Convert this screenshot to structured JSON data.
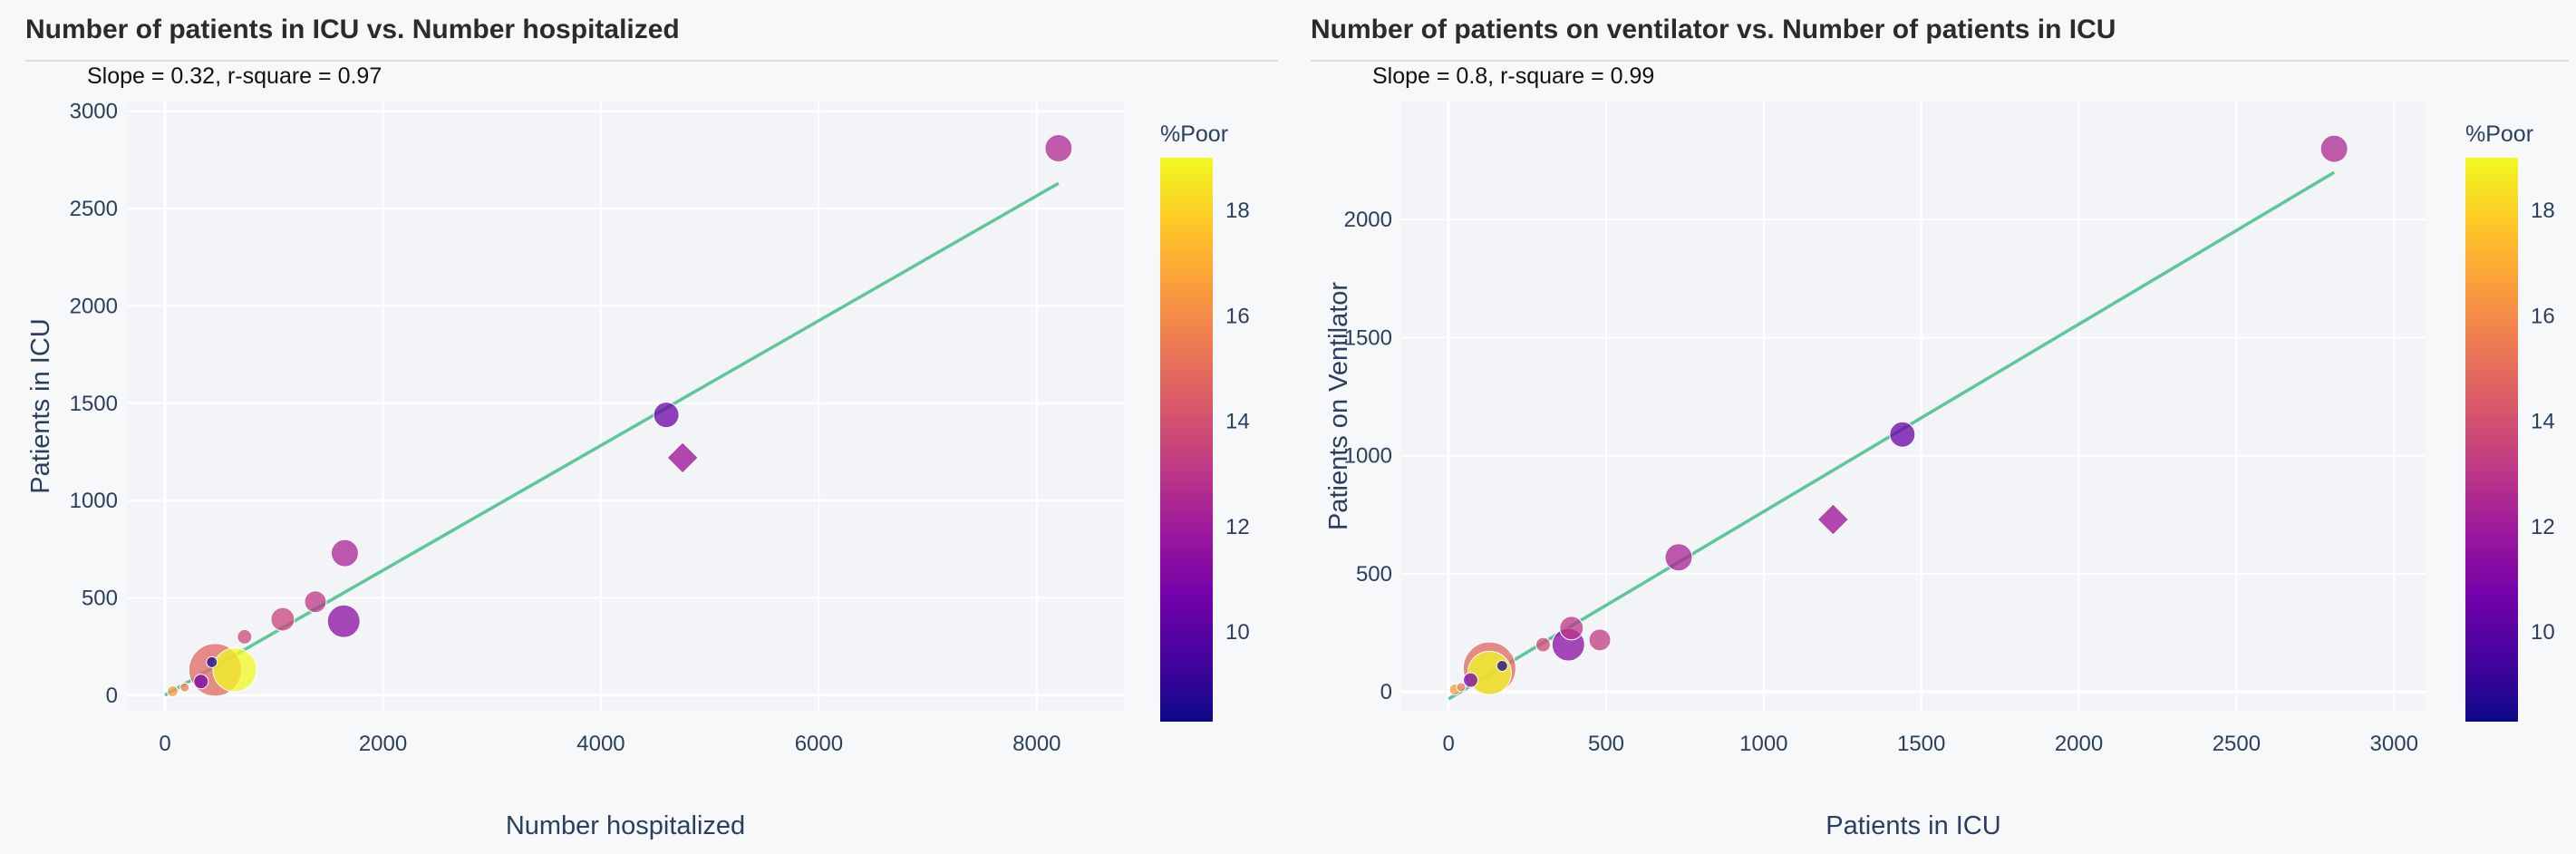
{
  "colors": {
    "background": "#f7f8fa",
    "plot_bg": "#f3f4f7",
    "grid": "#ffffff",
    "fit_line": "#5ec79a",
    "text": "#2a3f5f",
    "colorscale": [
      "#0d0887",
      "#46039f",
      "#7201a8",
      "#9c179e",
      "#bd3786",
      "#d8576b",
      "#ed7953",
      "#fb9f3a",
      "#fdca26",
      "#f0f921"
    ]
  },
  "panels": [
    {
      "title": "Number of patients in ICU vs. Number hospitalized",
      "annotation": "Slope = 0.32, r-square = 0.97",
      "colorbar": {
        "title": "%Poor",
        "range": [
          8.3,
          19
        ],
        "ticks": [
          "10",
          "12",
          "14",
          "16",
          "18"
        ]
      }
    },
    {
      "title": "Number of patients on ventilator vs. Number of patients in ICU",
      "annotation": "Slope = 0.8, r-square = 0.99",
      "colorbar": {
        "title": "%Poor",
        "range": [
          8.3,
          19
        ],
        "ticks": [
          "10",
          "12",
          "14",
          "16",
          "18"
        ]
      }
    }
  ],
  "chart_data": [
    {
      "type": "scatter",
      "title": "Number of patients in ICU vs. Number hospitalized",
      "xlabel": "Number hospitalized",
      "ylabel": "Patients in ICU",
      "xlim": [
        -350,
        8800
      ],
      "ylim": [
        -80,
        3050
      ],
      "xticks": [
        0,
        2000,
        4000,
        6000,
        8000
      ],
      "xtick_labels": [
        "0",
        "2000",
        "4000",
        "6000",
        "8000"
      ],
      "yticks": [
        0,
        500,
        1000,
        1500,
        2000,
        2500,
        3000
      ],
      "ytick_labels": [
        "0",
        "500",
        "1000",
        "1500",
        "2000",
        "2500",
        "3000"
      ],
      "grid": true,
      "color_variable": "%Poor",
      "fit_line": {
        "x": [
          0,
          8200
        ],
        "y": [
          0,
          2630
        ]
      },
      "points": [
        {
          "x": 8200,
          "y": 2810,
          "poor": 12.5,
          "size": 15,
          "symbol": "circle"
        },
        {
          "x": 4600,
          "y": 1440,
          "poor": 10.5,
          "size": 14,
          "symbol": "circle"
        },
        {
          "x": 4750,
          "y": 1220,
          "poor": 12.0,
          "size": 17,
          "symbol": "diamond"
        },
        {
          "x": 1650,
          "y": 730,
          "poor": 12.3,
          "size": 15,
          "symbol": "circle"
        },
        {
          "x": 1640,
          "y": 380,
          "poor": 11.3,
          "size": 18,
          "symbol": "circle"
        },
        {
          "x": 1380,
          "y": 480,
          "poor": 13.0,
          "size": 12,
          "symbol": "circle"
        },
        {
          "x": 1080,
          "y": 390,
          "poor": 13.5,
          "size": 13,
          "symbol": "circle"
        },
        {
          "x": 730,
          "y": 300,
          "poor": 13.8,
          "size": 8,
          "symbol": "circle"
        },
        {
          "x": 460,
          "y": 130,
          "poor": 14.8,
          "size": 29,
          "symbol": "circle"
        },
        {
          "x": 640,
          "y": 130,
          "poor": 19.0,
          "size": 24,
          "symbol": "circle"
        },
        {
          "x": 430,
          "y": 170,
          "poor": 8.5,
          "size": 6,
          "symbol": "circle"
        },
        {
          "x": 330,
          "y": 70,
          "poor": 10.8,
          "size": 8,
          "symbol": "circle"
        },
        {
          "x": 180,
          "y": 40,
          "poor": 15.5,
          "size": 5,
          "symbol": "circle"
        },
        {
          "x": 70,
          "y": 20,
          "poor": 16.5,
          "size": 6,
          "symbol": "circle"
        }
      ]
    },
    {
      "type": "scatter",
      "title": "Number of patients on ventilator vs. Number of patients in ICU",
      "xlabel": "Patients in ICU",
      "ylabel": "Patients on Ventilator",
      "xlim": [
        -150,
        3100
      ],
      "ylim": [
        -80,
        2500
      ],
      "xticks": [
        0,
        500,
        1000,
        1500,
        2000,
        2500,
        3000
      ],
      "xtick_labels": [
        "0",
        "500",
        "1000",
        "1500",
        "2000",
        "2500",
        "3000"
      ],
      "yticks": [
        0,
        500,
        1000,
        1500,
        2000
      ],
      "ytick_labels": [
        "0",
        "500",
        "1000",
        "1500",
        "2000"
      ],
      "grid": true,
      "color_variable": "%Poor",
      "fit_line": {
        "x": [
          0,
          2810
        ],
        "y": [
          -30,
          2200
        ]
      },
      "points": [
        {
          "x": 2810,
          "y": 2300,
          "poor": 12.5,
          "size": 15,
          "symbol": "circle"
        },
        {
          "x": 1440,
          "y": 1090,
          "poor": 10.5,
          "size": 14,
          "symbol": "circle"
        },
        {
          "x": 1220,
          "y": 730,
          "poor": 12.0,
          "size": 17,
          "symbol": "diamond"
        },
        {
          "x": 730,
          "y": 570,
          "poor": 12.3,
          "size": 15,
          "symbol": "circle"
        },
        {
          "x": 380,
          "y": 200,
          "poor": 11.3,
          "size": 18,
          "symbol": "circle"
        },
        {
          "x": 390,
          "y": 270,
          "poor": 13.0,
          "size": 13,
          "symbol": "circle"
        },
        {
          "x": 480,
          "y": 220,
          "poor": 13.2,
          "size": 12,
          "symbol": "circle"
        },
        {
          "x": 300,
          "y": 200,
          "poor": 13.8,
          "size": 8,
          "symbol": "circle"
        },
        {
          "x": 130,
          "y": 100,
          "poor": 14.8,
          "size": 29,
          "symbol": "circle"
        },
        {
          "x": 130,
          "y": 80,
          "poor": 19.0,
          "size": 24,
          "symbol": "circle"
        },
        {
          "x": 170,
          "y": 110,
          "poor": 8.5,
          "size": 6,
          "symbol": "circle"
        },
        {
          "x": 70,
          "y": 50,
          "poor": 10.8,
          "size": 8,
          "symbol": "circle"
        },
        {
          "x": 40,
          "y": 20,
          "poor": 15.5,
          "size": 5,
          "symbol": "circle"
        },
        {
          "x": 20,
          "y": 10,
          "poor": 16.5,
          "size": 6,
          "symbol": "circle"
        }
      ]
    }
  ]
}
